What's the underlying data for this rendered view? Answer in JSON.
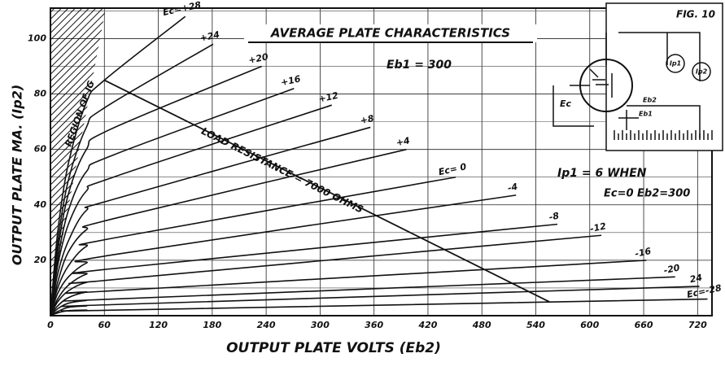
{
  "chart_data": {
    "type": "line",
    "title": "AVERAGE PLATE CHARACTERISTICS",
    "figure_label": "FIG. 10",
    "x_label": "OUTPUT PLATE VOLTS (Eb2)",
    "y_label": "OUTPUT PLATE MA. (Ip2)",
    "annotations": [
      "Eb1 = 300",
      "Ip1 = 6  WHEN",
      "Ec=0  Eb2=300",
      "REGION OF IG"
    ],
    "schematic_labels": [
      "Ip1",
      "Ip2",
      "Ec",
      "Eb2",
      "Eb1"
    ],
    "xlim": [
      0,
      736
    ],
    "ylim": [
      0,
      111
    ],
    "xticks": [
      0,
      60,
      120,
      180,
      240,
      300,
      360,
      420,
      480,
      540,
      600,
      660,
      720
    ],
    "yticks": [
      20,
      40,
      60,
      80,
      100
    ],
    "yticks_minor": [
      10,
      30,
      50,
      70,
      90,
      110
    ],
    "grid": true,
    "color": "#111111",
    "series": [
      {
        "name": "Ec=+28",
        "x": [
          0,
          8,
          20,
          40,
          60,
          150
        ],
        "values": [
          0,
          30,
          55,
          77,
          85,
          108
        ]
      },
      {
        "name": "+24",
        "x": [
          0,
          8,
          20,
          40,
          60,
          181
        ],
        "values": [
          0,
          26,
          49,
          68,
          75,
          98
        ]
      },
      {
        "name": "+20",
        "x": [
          0,
          8,
          20,
          40,
          65,
          235
        ],
        "values": [
          0,
          23,
          44,
          60,
          67,
          90
        ]
      },
      {
        "name": "+16",
        "x": [
          0,
          8,
          20,
          40,
          70,
          271
        ],
        "values": [
          0,
          20,
          38,
          52,
          58,
          82
        ]
      },
      {
        "name": "+12",
        "x": [
          0,
          8,
          20,
          40,
          70,
          313
        ],
        "values": [
          0,
          18,
          33,
          45,
          50,
          76
        ]
      },
      {
        "name": "+8",
        "x": [
          0,
          8,
          20,
          40,
          70,
          356
        ],
        "values": [
          0,
          15,
          27,
          38,
          42,
          68
        ]
      },
      {
        "name": "+4",
        "x": [
          0,
          8,
          20,
          40,
          70,
          396
        ],
        "values": [
          0,
          12,
          23,
          31,
          35,
          60
        ]
      },
      {
        "name": "Ec= 0",
        "x": [
          0,
          8,
          20,
          40,
          70,
          451
        ],
        "values": [
          0,
          10,
          18,
          25,
          28,
          50
        ]
      },
      {
        "name": "-4",
        "x": [
          0,
          8,
          20,
          40,
          70,
          518
        ],
        "values": [
          0,
          8,
          14,
          19,
          22,
          43.5
        ]
      },
      {
        "name": "-8",
        "x": [
          0,
          8,
          20,
          40,
          70,
          564
        ],
        "values": [
          0,
          6,
          11,
          15,
          17,
          33
        ]
      },
      {
        "name": "-12",
        "x": [
          0,
          8,
          20,
          40,
          70,
          613
        ],
        "values": [
          0,
          5,
          9,
          12,
          13,
          29
        ]
      },
      {
        "name": "-16",
        "x": [
          0,
          8,
          20,
          40,
          70,
          663
        ],
        "values": [
          0,
          3.5,
          6.5,
          8.5,
          9,
          20
        ]
      },
      {
        "name": "-20",
        "x": [
          0,
          8,
          20,
          40,
          70,
          695
        ],
        "values": [
          0,
          2.5,
          4.5,
          5.5,
          6,
          14
        ]
      },
      {
        "name": "24",
        "x": [
          0,
          8,
          20,
          40,
          70,
          722
        ],
        "values": [
          0,
          1.5,
          3,
          3.5,
          4,
          10.6
        ]
      },
      {
        "name": "Ec=-28",
        "x": [
          0,
          8,
          20,
          40,
          70,
          731
        ],
        "values": [
          0,
          1,
          1.8,
          2,
          2,
          6
        ]
      }
    ],
    "load_line": {
      "label": "LOAD RESISTANCE = 7000 OHMS",
      "x": [
        60,
        555
      ],
      "values": [
        85,
        5
      ]
    }
  }
}
